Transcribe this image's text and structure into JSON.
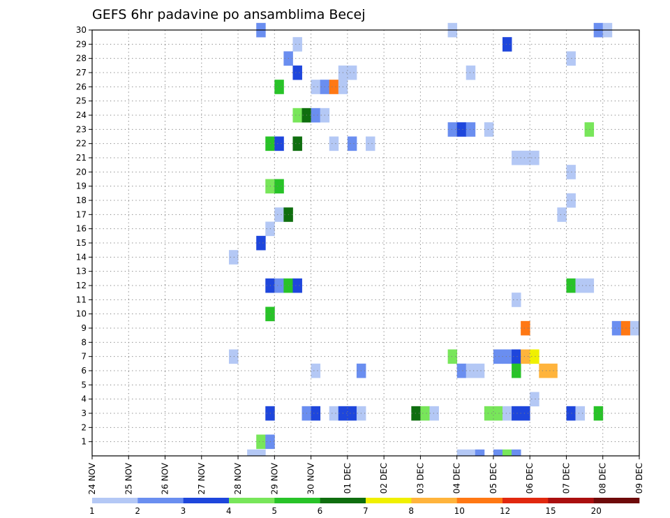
{
  "chart_data": {
    "type": "heatmap",
    "title": "GEFS 6hr padavine po ansamblima Becej",
    "xlabel": "",
    "ylabel": "",
    "x_ticks": [
      "24 NOV",
      "25 NOV",
      "26 NOV",
      "27 NOV",
      "28 NOV",
      "29 NOV",
      "30 NOV",
      "01 DEC",
      "02 DEC",
      "03 DEC",
      "04 DEC",
      "05 DEC",
      "06 DEC",
      "07 DEC",
      "08 DEC",
      "09 DEC"
    ],
    "y_ticks": [
      "1",
      "2",
      "3",
      "4",
      "5",
      "6",
      "7",
      "8",
      "9",
      "10",
      "11",
      "12",
      "13",
      "14",
      "15",
      "16",
      "17",
      "18",
      "19",
      "20",
      "21",
      "22",
      "23",
      "24",
      "25",
      "26",
      "27",
      "28",
      "29",
      "30"
    ],
    "ylim": [
      0,
      30
    ],
    "x_range_days": [
      0,
      15
    ],
    "time_step_hours": 6,
    "grid": true,
    "legend": {
      "placement": "bottom",
      "thresholds": [
        "1",
        "2",
        "3",
        "4",
        "5",
        "6",
        "7",
        "8",
        "10",
        "12",
        "15",
        "20"
      ],
      "colors": [
        "#b4c8f5",
        "#6a8ef0",
        "#1e46dc",
        "#78e65a",
        "#28c328",
        "#0f6e0f",
        "#f0f000",
        "#ffb43c",
        "#ff7814",
        "#e1280f",
        "#aa0f0f",
        "#6e0a0a"
      ]
    },
    "cells": [
      {
        "member": 30,
        "t": 18,
        "c": 1
      },
      {
        "member": 30,
        "t": 39,
        "c": 0
      },
      {
        "member": 30,
        "t": 55,
        "c": 1
      },
      {
        "member": 30,
        "t": 56,
        "c": 0
      },
      {
        "member": 29,
        "t": 22,
        "c": 0
      },
      {
        "member": 29,
        "t": 45,
        "c": 2
      },
      {
        "member": 28,
        "t": 21,
        "c": 1
      },
      {
        "member": 28,
        "t": 52,
        "c": 0
      },
      {
        "member": 27,
        "t": 22,
        "c": 2
      },
      {
        "member": 27,
        "t": 27,
        "c": 0
      },
      {
        "member": 27,
        "t": 28,
        "c": 0
      },
      {
        "member": 27,
        "t": 41,
        "c": 0
      },
      {
        "member": 26,
        "t": 20,
        "c": 4
      },
      {
        "member": 26,
        "t": 24,
        "c": 0
      },
      {
        "member": 26,
        "t": 25,
        "c": 1
      },
      {
        "member": 26,
        "t": 26,
        "c": 8
      },
      {
        "member": 26,
        "t": 27,
        "c": 0
      },
      {
        "member": 24,
        "t": 22,
        "c": 3
      },
      {
        "member": 24,
        "t": 23,
        "c": 5
      },
      {
        "member": 24,
        "t": 24,
        "c": 1
      },
      {
        "member": 24,
        "t": 25,
        "c": 0
      },
      {
        "member": 23,
        "t": 39,
        "c": 1
      },
      {
        "member": 23,
        "t": 40,
        "c": 2
      },
      {
        "member": 23,
        "t": 41,
        "c": 1
      },
      {
        "member": 23,
        "t": 43,
        "c": 0
      },
      {
        "member": 23,
        "t": 54,
        "c": 3
      },
      {
        "member": 22,
        "t": 19,
        "c": 4
      },
      {
        "member": 22,
        "t": 20,
        "c": 2
      },
      {
        "member": 22,
        "t": 22,
        "c": 5
      },
      {
        "member": 22,
        "t": 26,
        "c": 0
      },
      {
        "member": 22,
        "t": 28,
        "c": 1
      },
      {
        "member": 22,
        "t": 30,
        "c": 0
      },
      {
        "member": 21,
        "t": 46,
        "c": 0
      },
      {
        "member": 21,
        "t": 47,
        "c": 0
      },
      {
        "member": 21,
        "t": 48,
        "c": 0
      },
      {
        "member": 20,
        "t": 52,
        "c": 0
      },
      {
        "member": 19,
        "t": 19,
        "c": 3
      },
      {
        "member": 19,
        "t": 20,
        "c": 4
      },
      {
        "member": 18,
        "t": 52,
        "c": 0
      },
      {
        "member": 17,
        "t": 20,
        "c": 0
      },
      {
        "member": 17,
        "t": 21,
        "c": 5
      },
      {
        "member": 17,
        "t": 51,
        "c": 0
      },
      {
        "member": 16,
        "t": 19,
        "c": 0
      },
      {
        "member": 15,
        "t": 18,
        "c": 2
      },
      {
        "member": 14,
        "t": 15,
        "c": 0
      },
      {
        "member": 12,
        "t": 19,
        "c": 2
      },
      {
        "member": 12,
        "t": 20,
        "c": 1
      },
      {
        "member": 12,
        "t": 21,
        "c": 4
      },
      {
        "member": 12,
        "t": 22,
        "c": 2
      },
      {
        "member": 12,
        "t": 52,
        "c": 4
      },
      {
        "member": 12,
        "t": 53,
        "c": 0
      },
      {
        "member": 12,
        "t": 54,
        "c": 0
      },
      {
        "member": 11,
        "t": 46,
        "c": 0
      },
      {
        "member": 10,
        "t": 19,
        "c": 4
      },
      {
        "member": 9,
        "t": 47,
        "c": 8
      },
      {
        "member": 9,
        "t": 57,
        "c": 1
      },
      {
        "member": 9,
        "t": 58,
        "c": 8
      },
      {
        "member": 9,
        "t": 59,
        "c": 0
      },
      {
        "member": 7,
        "t": 15,
        "c": 0
      },
      {
        "member": 7,
        "t": 39,
        "c": 3
      },
      {
        "member": 7,
        "t": 44,
        "c": 1
      },
      {
        "member": 7,
        "t": 45,
        "c": 1
      },
      {
        "member": 7,
        "t": 46,
        "c": 2
      },
      {
        "member": 7,
        "t": 47,
        "c": 7
      },
      {
        "member": 7,
        "t": 48,
        "c": 6
      },
      {
        "member": 6,
        "t": 24,
        "c": 0
      },
      {
        "member": 6,
        "t": 29,
        "c": 1
      },
      {
        "member": 6,
        "t": 40,
        "c": 1
      },
      {
        "member": 6,
        "t": 41,
        "c": 0
      },
      {
        "member": 6,
        "t": 42,
        "c": 0
      },
      {
        "member": 6,
        "t": 46,
        "c": 4
      },
      {
        "member": 6,
        "t": 49,
        "c": 7
      },
      {
        "member": 6,
        "t": 50,
        "c": 7
      },
      {
        "member": 4,
        "t": 48,
        "c": 0
      },
      {
        "member": 3,
        "t": 19,
        "c": 2
      },
      {
        "member": 3,
        "t": 23,
        "c": 1
      },
      {
        "member": 3,
        "t": 24,
        "c": 2
      },
      {
        "member": 3,
        "t": 26,
        "c": 0
      },
      {
        "member": 3,
        "t": 27,
        "c": 2
      },
      {
        "member": 3,
        "t": 28,
        "c": 2
      },
      {
        "member": 3,
        "t": 29,
        "c": 0
      },
      {
        "member": 3,
        "t": 35,
        "c": 5
      },
      {
        "member": 3,
        "t": 36,
        "c": 3
      },
      {
        "member": 3,
        "t": 37,
        "c": 0
      },
      {
        "member": 3,
        "t": 43,
        "c": 3
      },
      {
        "member": 3,
        "t": 44,
        "c": 3
      },
      {
        "member": 3,
        "t": 45,
        "c": 0
      },
      {
        "member": 3,
        "t": 46,
        "c": 2
      },
      {
        "member": 3,
        "t": 47,
        "c": 2
      },
      {
        "member": 3,
        "t": 52,
        "c": 2
      },
      {
        "member": 3,
        "t": 53,
        "c": 0
      },
      {
        "member": 3,
        "t": 55,
        "c": 4
      },
      {
        "member": 1,
        "t": 18,
        "c": 3
      },
      {
        "member": 1,
        "t": 19,
        "c": 1
      },
      {
        "member": 0,
        "t": 17,
        "c": 0
      },
      {
        "member": 0,
        "t": 18,
        "c": 0
      },
      {
        "member": 0,
        "t": 40,
        "c": 0
      },
      {
        "member": 0,
        "t": 41,
        "c": 0
      },
      {
        "member": 0,
        "t": 42,
        "c": 1
      },
      {
        "member": 0,
        "t": 44,
        "c": 1
      },
      {
        "member": 0,
        "t": 45,
        "c": 3
      },
      {
        "member": 0,
        "t": 46,
        "c": 1
      }
    ]
  }
}
